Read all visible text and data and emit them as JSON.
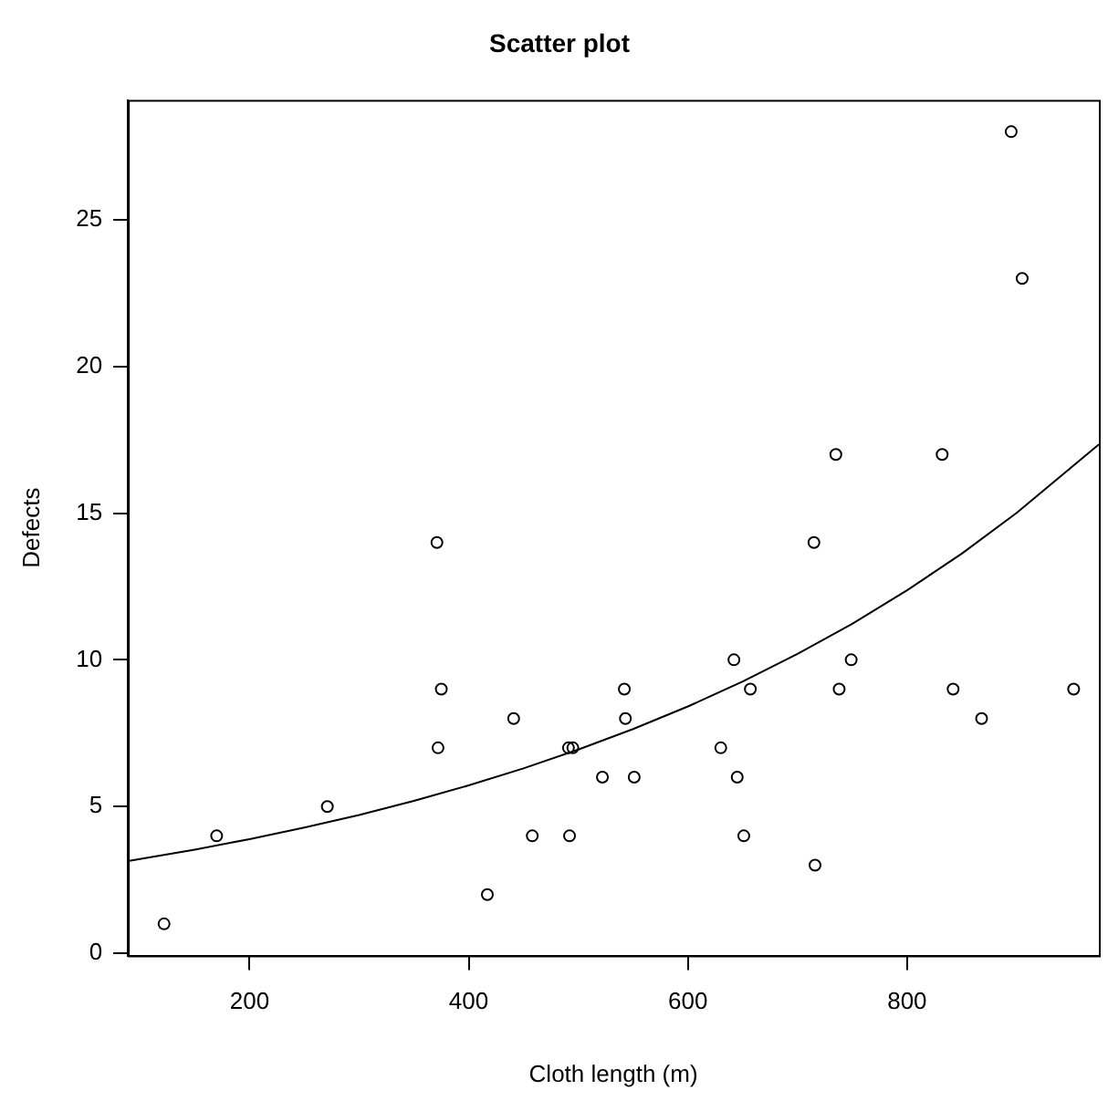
{
  "chart_data": {
    "type": "scatter",
    "title": "Scatter plot",
    "xlabel": "Cloth length (m)",
    "ylabel": "Defects",
    "xlim": [
      89,
      975
    ],
    "xticks": [
      200,
      400,
      600,
      800
    ],
    "ylim": [
      -0.08,
      29.08
    ],
    "yticks": [
      0,
      5,
      10,
      15,
      20,
      25
    ],
    "grid": false,
    "legend": false,
    "series": [
      {
        "color": "#000000",
        "marker": "circle",
        "x": [
          551,
          651,
          832,
          375,
          715,
          868,
          271,
          630,
          491,
          372,
          645,
          441,
          895,
          458,
          642,
          492,
          543,
          842,
          905,
          542,
          522,
          122,
          657,
          170,
          738,
          371,
          735,
          749,
          495,
          716,
          952,
          417
        ],
        "values": [
          6,
          4,
          17,
          9,
          14,
          8,
          5,
          7,
          7,
          7,
          6,
          8,
          28,
          4,
          10,
          4,
          8,
          9,
          23,
          9,
          6,
          1,
          9,
          4,
          9,
          14,
          17,
          10,
          7,
          3,
          9,
          2
        ]
      },
      {
        "type": "line",
        "color": "#000000",
        "marker": "none",
        "line_style": "solid",
        "x": [
          89,
          150,
          200,
          250,
          300,
          350,
          400,
          450,
          500,
          550,
          600,
          650,
          700,
          750,
          800,
          850,
          900,
          975
        ],
        "values": [
          3.14,
          3.53,
          3.89,
          4.28,
          4.71,
          5.19,
          5.72,
          6.3,
          6.94,
          7.64,
          8.41,
          9.26,
          10.2,
          11.23,
          12.37,
          13.62,
          15.01,
          17.34
        ]
      }
    ]
  }
}
